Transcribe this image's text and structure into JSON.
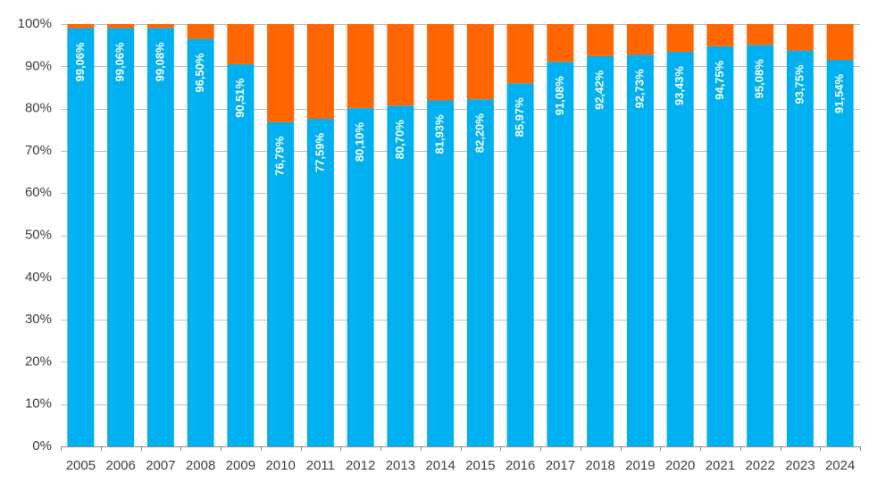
{
  "chart_data": {
    "type": "bar",
    "stacked": true,
    "categories": [
      "2005",
      "2006",
      "2007",
      "2008",
      "2009",
      "2010",
      "2011",
      "2012",
      "2013",
      "2014",
      "2015",
      "2016",
      "2017",
      "2018",
      "2019",
      "2020",
      "2021",
      "2022",
      "2023",
      "2024"
    ],
    "series": [
      {
        "values": [
          99.06,
          99.06,
          99.08,
          96.5,
          90.51,
          76.79,
          77.59,
          80.1,
          80.7,
          81.93,
          82.2,
          85.97,
          91.08,
          92.42,
          92.73,
          93.43,
          94.75,
          95.08,
          93.75,
          91.54
        ],
        "color": "#00b0f0",
        "labels": [
          "99,06%",
          "99,06%",
          "99,08%",
          "96,50%",
          "90,51%",
          "76,79%",
          "77,59%",
          "80,10%",
          "80,70%",
          "81,93%",
          "82,20%",
          "85,97%",
          "91,08%",
          "92,42%",
          "92,73%",
          "93,43%",
          "94,75%",
          "95,08%",
          "93,75%",
          "91,54%"
        ]
      },
      {
        "values": [
          0.94,
          0.94,
          0.92,
          3.5,
          9.49,
          23.21,
          22.41,
          19.9,
          19.3,
          18.07,
          17.8,
          14.03,
          8.92,
          7.58,
          7.27,
          6.57,
          5.25,
          4.92,
          6.25,
          8.46
        ],
        "color": "#ff6600"
      }
    ],
    "ylim": [
      0,
      100
    ],
    "y_ticks": [
      "0%",
      "10%",
      "20%",
      "30%",
      "40%",
      "50%",
      "60%",
      "70%",
      "80%",
      "90%",
      "100%"
    ],
    "y_tick_values": [
      0,
      10,
      20,
      30,
      40,
      50,
      60,
      70,
      80,
      90,
      100
    ],
    "grid": true,
    "legend": "none",
    "title": "",
    "xlabel": "",
    "ylabel": ""
  }
}
